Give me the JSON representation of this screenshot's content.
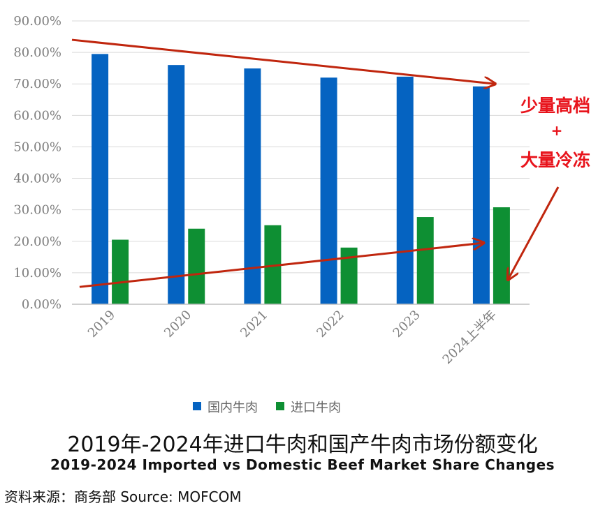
{
  "chart_data": {
    "type": "bar",
    "categories": [
      "2019",
      "2020",
      "2021",
      "2022",
      "2023",
      "2024上半年"
    ],
    "series": [
      {
        "name": "国内牛肉",
        "color": "#0563c1",
        "values": [
          79.5,
          76.0,
          74.9,
          72.0,
          72.3,
          69.2
        ]
      },
      {
        "name": "进口牛肉",
        "color": "#0e8f33",
        "values": [
          20.5,
          24.0,
          25.1,
          18.0,
          27.7,
          30.8
        ]
      }
    ],
    "ylim": [
      0,
      90
    ],
    "yticks": [
      "0.00%",
      "10.00%",
      "20.00%",
      "30.00%",
      "40.00%",
      "50.00%",
      "60.00%",
      "70.00%",
      "80.00%",
      "90.00%"
    ],
    "legend_position": "bottom",
    "trend_arrows": [
      {
        "series": "国内牛肉",
        "from": [
          -0.5,
          84
        ],
        "to": [
          5.05,
          70
        ]
      },
      {
        "series": "进口牛肉",
        "from": [
          -0.4,
          5.5
        ],
        "to": [
          4.9,
          19.5
        ]
      }
    ],
    "annotation": {
      "line1": "少量高档",
      "line2": "+",
      "line3": "大量冷冻"
    },
    "arrow_color": "#c0260e"
  },
  "title": "2019年-2024年进口牛肉和国产牛肉市场份额变化",
  "subtitle": "2019-2024 Imported vs Domestic Beef Market Share Changes",
  "source": "资料来源：商务部 Source: MOFCOM"
}
